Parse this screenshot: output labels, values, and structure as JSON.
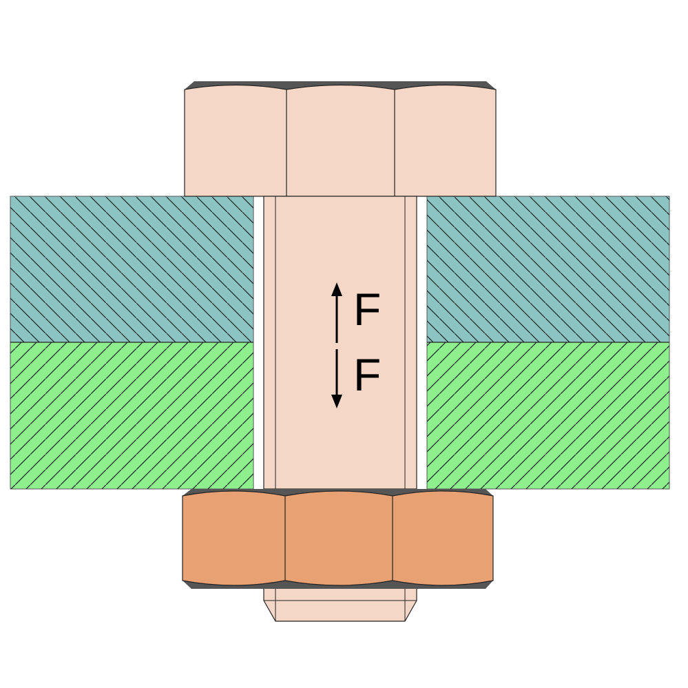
{
  "labels": {
    "force_upper": "F",
    "force_lower": "F"
  },
  "colors": {
    "bolt": "#f4d7c6",
    "nut": "#e8a173",
    "upper_plate": "#8cc4c4",
    "lower_plate": "#8df08d",
    "chamfer": "#555555",
    "hatch": "#1a2a2a",
    "outline": "#222222",
    "arrow": "#000000"
  },
  "icons": {
    "up_arrow": "arrow-up",
    "down_arrow": "arrow-down"
  }
}
